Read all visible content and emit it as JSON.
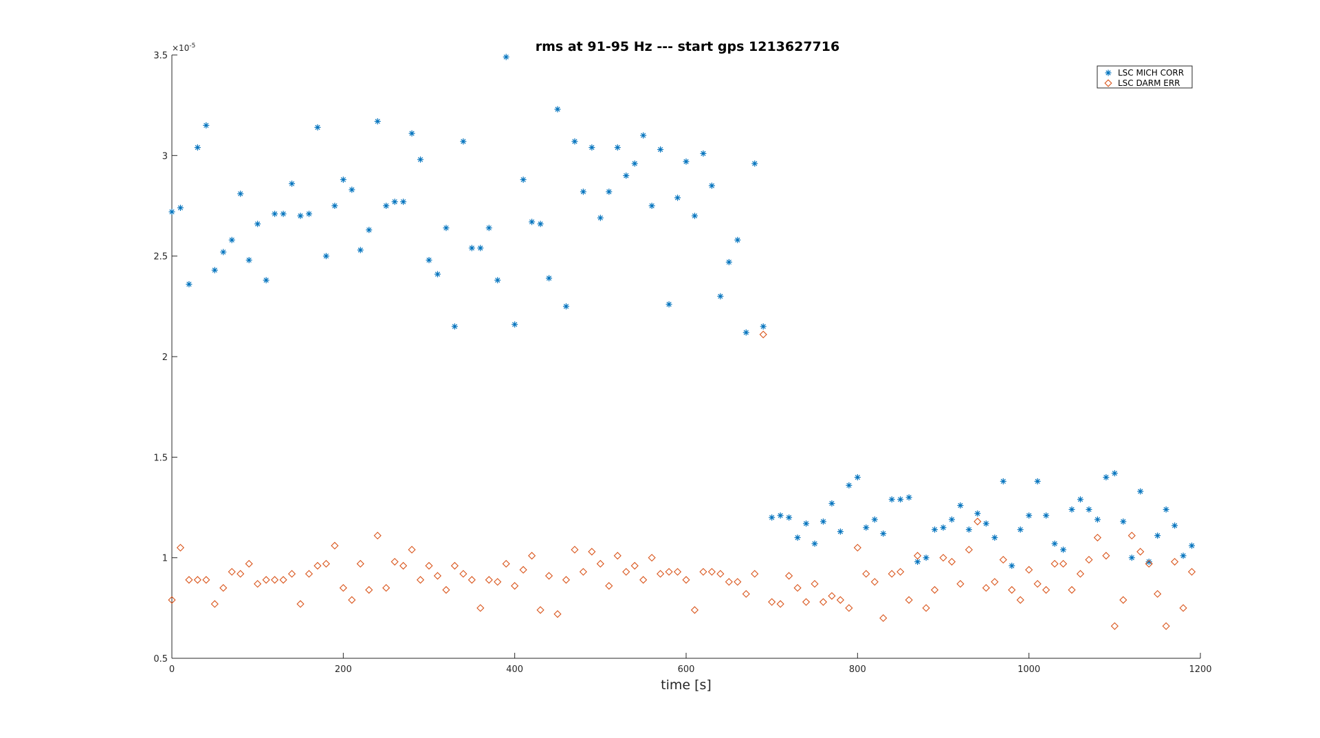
{
  "chart_data": {
    "type": "scatter",
    "title": "rms at 91-95 Hz --- start gps 1213627716",
    "xlabel": "time [s]",
    "ylabel": "",
    "y_exponent_label": "×10",
    "y_exponent_power": "-5",
    "xlim": [
      0,
      1200
    ],
    "ylim": [
      0.5,
      3.5
    ],
    "xticks": [
      0,
      200,
      400,
      600,
      800,
      1000,
      1200
    ],
    "yticks": [
      0.5,
      1,
      1.5,
      2,
      2.5,
      3,
      3.5
    ],
    "xtick_labels": [
      "0",
      "200",
      "400",
      "600",
      "800",
      "1000",
      "1200"
    ],
    "ytick_labels": [
      "0.5",
      "1",
      "1.5",
      "2",
      "2.5",
      "3",
      "3.5"
    ],
    "grid": false,
    "legend_position": "top-right",
    "x": [
      0,
      10,
      20,
      30,
      40,
      50,
      60,
      70,
      80,
      90,
      100,
      110,
      120,
      130,
      140,
      150,
      160,
      170,
      180,
      190,
      200,
      210,
      220,
      230,
      240,
      250,
      260,
      270,
      280,
      290,
      300,
      310,
      320,
      330,
      340,
      350,
      360,
      370,
      380,
      390,
      400,
      410,
      420,
      430,
      440,
      450,
      460,
      470,
      480,
      490,
      500,
      510,
      520,
      530,
      540,
      550,
      560,
      570,
      580,
      590,
      600,
      610,
      620,
      630,
      640,
      650,
      660,
      670,
      680,
      690,
      700,
      710,
      720,
      730,
      740,
      750,
      760,
      770,
      780,
      790,
      800,
      810,
      820,
      830,
      840,
      850,
      860,
      870,
      880,
      890,
      900,
      910,
      920,
      930,
      940,
      950,
      960,
      970,
      980,
      990,
      1000,
      1010,
      1020,
      1030,
      1040,
      1050,
      1060,
      1070,
      1080,
      1090,
      1100,
      1110,
      1120,
      1130,
      1140,
      1150,
      1160,
      1170,
      1180,
      1190
    ],
    "series": [
      {
        "name": "LSC MICH CORR",
        "marker": "asterisk",
        "color": "#0072bd",
        "values": [
          2.72,
          2.74,
          2.36,
          3.04,
          3.15,
          2.43,
          2.52,
          2.58,
          2.81,
          2.48,
          2.66,
          2.38,
          2.71,
          2.71,
          2.86,
          2.7,
          2.71,
          3.14,
          2.5,
          2.75,
          2.88,
          2.83,
          2.53,
          2.63,
          3.17,
          2.75,
          2.77,
          2.77,
          3.11,
          2.98,
          2.48,
          2.41,
          2.64,
          2.15,
          3.07,
          2.54,
          2.54,
          2.64,
          2.38,
          3.49,
          2.16,
          2.88,
          2.67,
          2.66,
          2.39,
          3.23,
          2.25,
          3.07,
          2.82,
          3.04,
          2.69,
          2.82,
          3.04,
          2.9,
          2.96,
          3.1,
          2.75,
          3.03,
          2.26,
          2.79,
          2.97,
          2.7,
          3.01,
          2.85,
          2.3,
          2.47,
          2.58,
          2.12,
          2.96,
          2.15,
          1.2,
          1.21,
          1.2,
          1.1,
          1.17,
          1.07,
          1.18,
          1.27,
          1.13,
          1.36,
          1.4,
          1.15,
          1.19,
          1.12,
          1.29,
          1.29,
          1.3,
          0.98,
          1.0,
          1.14,
          1.15,
          1.19,
          1.26,
          1.14,
          1.22,
          1.17,
          1.1,
          1.38,
          0.96,
          1.14,
          1.21,
          1.38,
          1.21,
          1.07,
          1.04,
          1.24,
          1.29,
          1.24,
          1.19,
          1.4,
          1.42,
          1.18,
          1.0,
          1.33,
          0.98,
          1.11,
          1.24,
          1.16,
          1.01,
          1.06
        ]
      },
      {
        "name": "LSC DARM ERR",
        "marker": "diamond",
        "color": "#d95319",
        "values": [
          0.79,
          1.05,
          0.89,
          0.89,
          0.89,
          0.77,
          0.85,
          0.93,
          0.92,
          0.97,
          0.87,
          0.89,
          0.89,
          0.89,
          0.92,
          0.77,
          0.92,
          0.96,
          0.97,
          1.06,
          0.85,
          0.79,
          0.97,
          0.84,
          1.11,
          0.85,
          0.98,
          0.96,
          1.04,
          0.89,
          0.96,
          0.91,
          0.84,
          0.96,
          0.92,
          0.89,
          0.75,
          0.89,
          0.88,
          0.97,
          0.86,
          0.94,
          1.01,
          0.74,
          0.91,
          0.72,
          0.89,
          1.04,
          0.93,
          1.03,
          0.97,
          0.86,
          1.01,
          0.93,
          0.96,
          0.89,
          1.0,
          0.92,
          0.93,
          0.93,
          0.89,
          0.74,
          0.93,
          0.93,
          0.92,
          0.88,
          0.88,
          0.82,
          0.92,
          2.11,
          0.78,
          0.77,
          0.91,
          0.85,
          0.78,
          0.87,
          0.78,
          0.81,
          0.79,
          0.75,
          1.05,
          0.92,
          0.88,
          0.7,
          0.92,
          0.93,
          0.79,
          1.01,
          0.75,
          0.84,
          1.0,
          0.98,
          0.87,
          1.04,
          1.18,
          0.85,
          0.88,
          0.99,
          0.84,
          0.79,
          0.94,
          0.87,
          0.84,
          0.97,
          0.97,
          0.84,
          0.92,
          0.99,
          1.1,
          1.01,
          0.66,
          0.79,
          1.11,
          1.03,
          0.97,
          0.82,
          0.66,
          0.98,
          0.75,
          0.93
        ]
      }
    ]
  }
}
